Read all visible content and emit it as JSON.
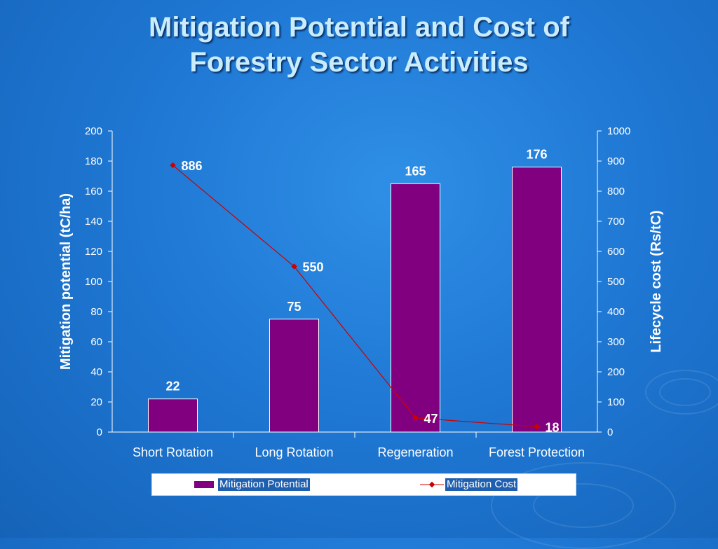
{
  "title_lines": [
    "Mitigation Potential and Cost of",
    "Forestry Sector Activities"
  ],
  "colors": {
    "bar": "#800080",
    "bar_border": "#ffffff",
    "line": "#cc0000",
    "axis": "#ffffff",
    "label": "#ffffff"
  },
  "chart_data": {
    "type": "bar",
    "categories": [
      "Short Rotation",
      "Long Rotation",
      "Regeneration",
      "Forest Protection"
    ],
    "series": [
      {
        "name": "Mitigation Potential",
        "type": "bar",
        "axis": "left",
        "values": [
          22,
          75,
          165,
          176
        ]
      },
      {
        "name": "Mitigation Cost",
        "type": "line",
        "axis": "right",
        "values": [
          886,
          550,
          47,
          18
        ]
      }
    ],
    "ylabel": "Mitigation potential (tC/ha)",
    "y2label": "Lifecycle cost (Rs/tC)",
    "ylim": [
      0,
      200
    ],
    "y2lim": [
      0,
      1000
    ],
    "yticks": [
      0,
      20,
      40,
      60,
      80,
      100,
      120,
      140,
      160,
      180,
      200
    ],
    "y2ticks": [
      0,
      100,
      200,
      300,
      400,
      500,
      600,
      700,
      800,
      900,
      1000
    ],
    "grid": false,
    "legend": "bottom"
  }
}
